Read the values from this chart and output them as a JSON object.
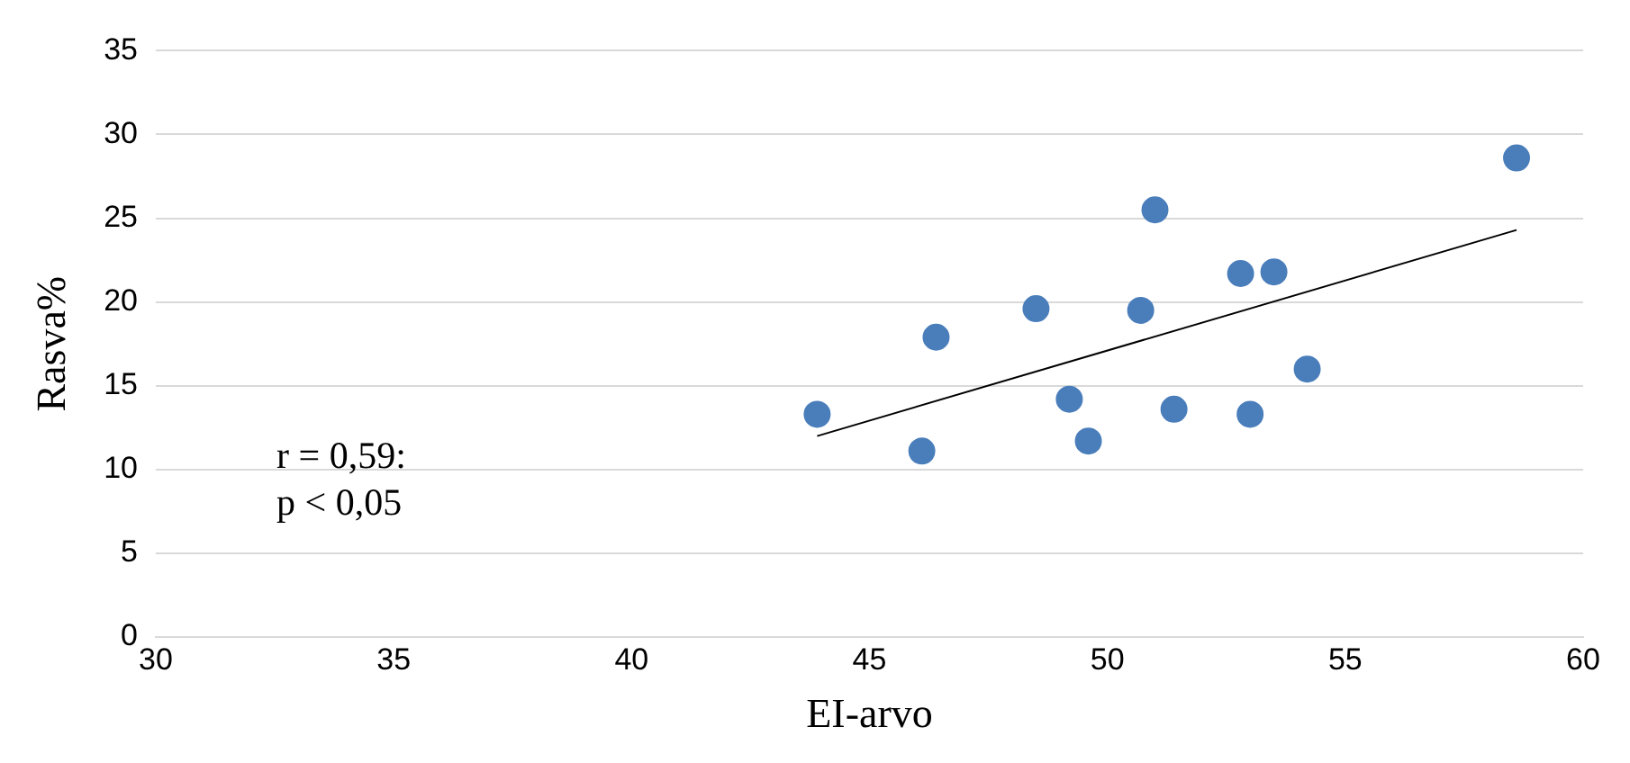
{
  "chart_data": {
    "type": "scatter",
    "xlabel": "EI-arvo",
    "ylabel": "Rasva%",
    "xlim": [
      30,
      60
    ],
    "xticks": [
      30,
      35,
      40,
      45,
      50,
      55,
      60
    ],
    "ylim": [
      0,
      35
    ],
    "yticks": [
      0,
      5,
      10,
      15,
      20,
      25,
      30,
      35
    ],
    "grid": "y",
    "legend": false,
    "annotations": [
      "r = 0,59:\np < 0,05"
    ],
    "series": [
      {
        "marker": "circle",
        "color": "#4a7ebb",
        "x": [
          43.9,
          46.1,
          46.4,
          48.5,
          49.2,
          49.6,
          50.7,
          51.0,
          51.4,
          52.8,
          53.0,
          53.5,
          54.2,
          58.6
        ],
        "values": [
          13.3,
          11.1,
          17.9,
          19.6,
          14.2,
          11.7,
          19.5,
          25.5,
          13.6,
          21.7,
          13.3,
          21.8,
          16.0,
          28.6
        ]
      },
      {
        "type": "line",
        "marker": "none",
        "color": "#000000",
        "x": [
          43.9,
          58.6
        ],
        "values": [
          12.0,
          24.3
        ]
      }
    ]
  }
}
